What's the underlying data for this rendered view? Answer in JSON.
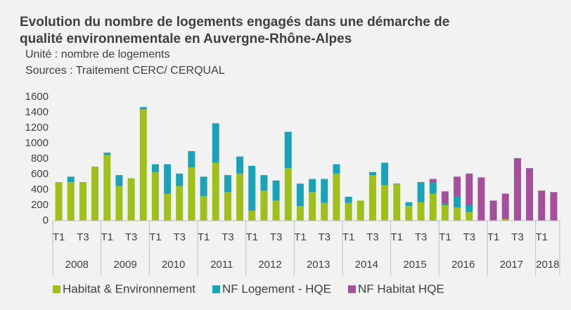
{
  "chart_data": {
    "type": "stacked_bar",
    "title": [
      "Evolution du nombre de logements engagés dans une démarche de",
      "qualité environnementale en Auvergne-Rhône-Alpes"
    ],
    "subtitle": [
      "Unité : nombre de logements",
      "Sources : Traitement CERC/  CERQUAL"
    ],
    "categories": [
      "T1",
      null,
      "T3",
      null,
      "T1",
      null,
      "T3",
      null,
      "T1",
      null,
      "T3",
      null,
      "T1",
      null,
      "T3",
      null,
      "T1",
      null,
      "T3",
      null,
      "T1",
      null,
      "T3",
      null,
      "T1",
      null,
      "T3",
      null,
      "T1",
      null,
      "T3",
      null,
      "T1",
      null,
      "T3",
      null,
      "T1",
      null,
      "T3",
      null,
      "T1",
      null
    ],
    "years": [
      "2008",
      "2009",
      "2010",
      "2011",
      "2012",
      "2013",
      "2014",
      "2015",
      "2016",
      "2017",
      "2018"
    ],
    "series": [
      {
        "name": "Habitat & Environnement",
        "color": "#9fbf1a",
        "values": [
          500,
          500,
          500,
          700,
          850,
          450,
          550,
          1440,
          630,
          350,
          450,
          690,
          320,
          750,
          370,
          610,
          130,
          390,
          260,
          680,
          190,
          370,
          230,
          610,
          230,
          260,
          590,
          460,
          470,
          190,
          240,
          350,
          200,
          170,
          110,
          0,
          0,
          20,
          0,
          0,
          0,
          0
        ]
      },
      {
        "name": "NF Logement - HQE",
        "color": "#1aa3b8",
        "values": [
          0,
          70,
          0,
          0,
          30,
          140,
          0,
          30,
          100,
          380,
          160,
          210,
          250,
          510,
          220,
          220,
          580,
          200,
          260,
          470,
          290,
          170,
          310,
          120,
          80,
          0,
          40,
          290,
          10,
          50,
          260,
          140,
          20,
          140,
          90,
          0,
          0,
          0,
          0,
          0,
          0,
          0
        ]
      },
      {
        "name": "NF Habitat HQE",
        "color": "#a4509a",
        "values": [
          0,
          0,
          0,
          0,
          0,
          0,
          0,
          0,
          0,
          0,
          0,
          0,
          0,
          0,
          0,
          0,
          0,
          0,
          0,
          0,
          0,
          0,
          0,
          0,
          0,
          0,
          0,
          0,
          0,
          0,
          0,
          50,
          160,
          260,
          410,
          560,
          260,
          330,
          810,
          680,
          390,
          370
        ]
      }
    ],
    "ylim": [
      0,
      1600
    ],
    "yticks": [
      0,
      200,
      400,
      600,
      800,
      1000,
      1200,
      1400,
      1600
    ],
    "grid": false,
    "legend": "bottom"
  }
}
